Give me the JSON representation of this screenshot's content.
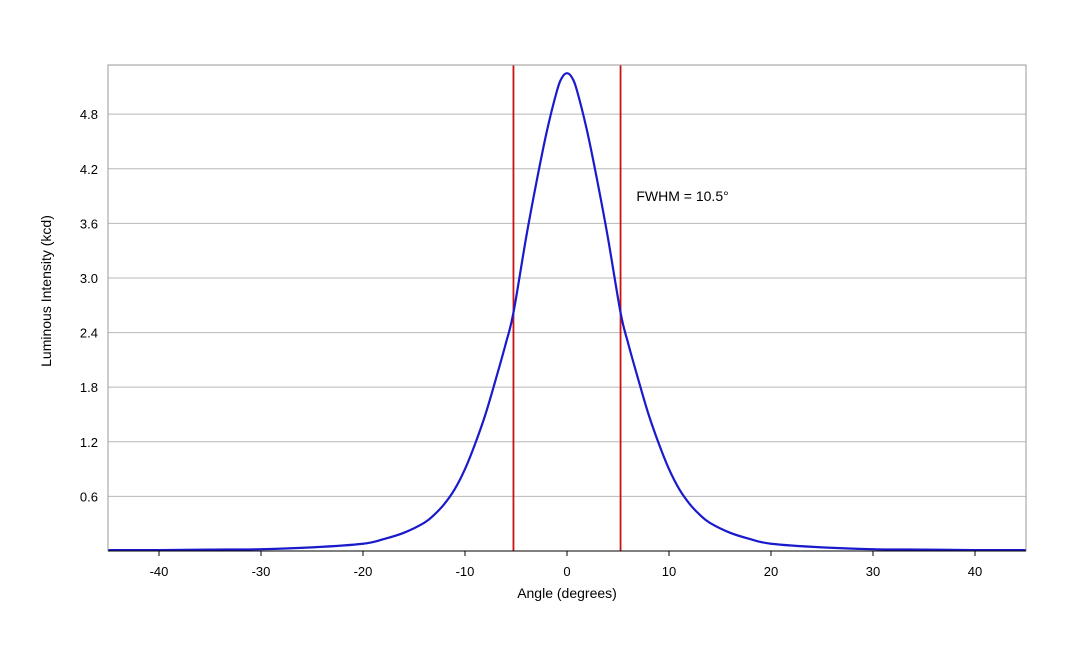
{
  "chart_data": {
    "type": "line",
    "title": "",
    "xlabel": "Angle (degrees)",
    "ylabel": "Luminous Intensity (kcd)",
    "xlim": [
      -45,
      45
    ],
    "ylim": [
      0,
      5.34
    ],
    "x_ticks": [
      -40,
      -30,
      -20,
      -10,
      0,
      10,
      20,
      30,
      40
    ],
    "x_tick_labels": [
      "-40",
      "-30",
      "-20",
      "-10",
      "0",
      "10",
      "20",
      "30",
      "40"
    ],
    "y_ticks": [
      0.6,
      1.2,
      1.8,
      2.4,
      3.0,
      3.6,
      4.2,
      4.8
    ],
    "y_tick_labels": [
      "0.6",
      "1.2",
      "1.8",
      "2.4",
      "3.0",
      "3.6",
      "4.2",
      "4.8"
    ],
    "grid": "horizontal",
    "series": [
      {
        "color": "#1a1acc",
        "x": [
          -45,
          -40,
          -35,
          -30,
          -25,
          -20,
          -18,
          -16,
          -14,
          -13,
          -12,
          -11,
          -10,
          -9,
          -8,
          -7,
          -6,
          -5.25,
          -4,
          -3,
          -2,
          -1,
          -0.5,
          0,
          0.5,
          1,
          2,
          3,
          4,
          5.25,
          6,
          7,
          8,
          9,
          10,
          11,
          12,
          13,
          14,
          16,
          18,
          20,
          25,
          30,
          35,
          40,
          45
        ],
        "y": [
          0.01,
          0.01,
          0.015,
          0.02,
          0.04,
          0.08,
          0.13,
          0.2,
          0.31,
          0.4,
          0.52,
          0.68,
          0.9,
          1.18,
          1.5,
          1.88,
          2.28,
          2.62,
          3.45,
          4.05,
          4.6,
          5.05,
          5.2,
          5.25,
          5.2,
          5.05,
          4.6,
          4.05,
          3.45,
          2.62,
          2.28,
          1.88,
          1.5,
          1.18,
          0.9,
          0.68,
          0.52,
          0.4,
          0.31,
          0.2,
          0.13,
          0.08,
          0.04,
          0.02,
          0.015,
          0.01,
          0.01
        ]
      }
    ],
    "vertical_markers": [
      {
        "x": -5.25,
        "color": "#cc1111"
      },
      {
        "x": 5.25,
        "color": "#cc1111"
      }
    ],
    "annotation": {
      "text": "FWHM = 10.5°",
      "x": 6.8,
      "y": 3.9
    },
    "colors": {
      "plot_border": "#9a9a9a",
      "grid": "#b8b8b8",
      "axis": "#000000"
    }
  }
}
